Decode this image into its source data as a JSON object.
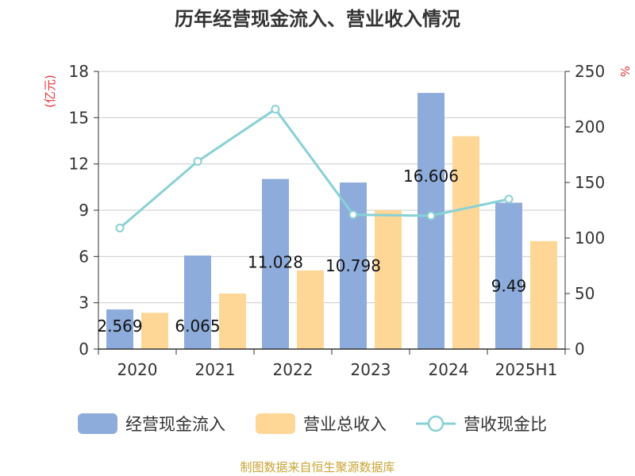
{
  "chart_data": {
    "type": "bar",
    "title": "历年经营现金流入、营业收入情况",
    "categories": [
      "2020",
      "2021",
      "2022",
      "2023",
      "2024",
      "2025H1"
    ],
    "series": [
      {
        "name": "经营现金流入",
        "type": "bar",
        "axis": "left",
        "color": "#8eacdb",
        "values": [
          2.569,
          6.065,
          11.028,
          10.798,
          16.606,
          9.49
        ],
        "labels": [
          "2.569",
          "6.065",
          "11.028",
          "10.798",
          "16.606",
          "9.49"
        ]
      },
      {
        "name": "营业总收入",
        "type": "bar",
        "axis": "left",
        "color": "#fed797",
        "values": [
          2.35,
          3.6,
          5.1,
          9.0,
          13.8,
          7.0
        ]
      },
      {
        "name": "营收现金比",
        "type": "line",
        "axis": "right",
        "color": "#88d1d5",
        "values": [
          109,
          169,
          216,
          121,
          120,
          135
        ]
      }
    ],
    "y_left": {
      "label": "(亿元)",
      "min": 0,
      "max": 18,
      "ticks": [
        0,
        3,
        6,
        9,
        12,
        15,
        18
      ]
    },
    "y_right": {
      "label": "%",
      "min": 0,
      "max": 250,
      "ticks": [
        0,
        50,
        100,
        150,
        200,
        250
      ]
    },
    "grid": true,
    "legend_position": "bottom",
    "source": "制图数据来自恒生聚源数据库"
  }
}
